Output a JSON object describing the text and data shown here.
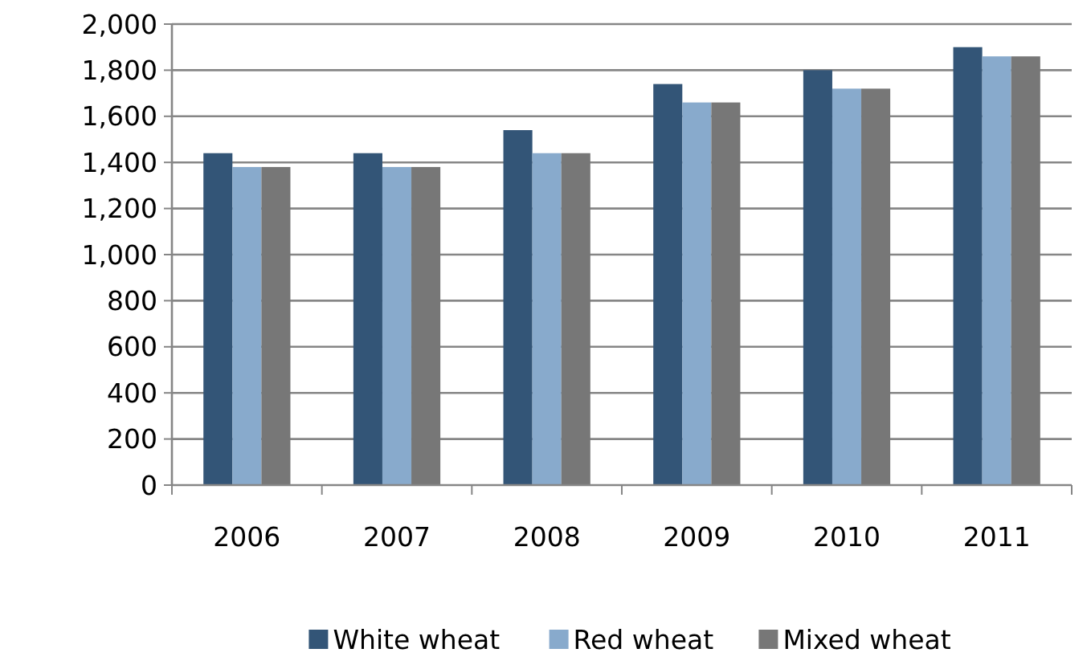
{
  "chart_data": {
    "type": "bar",
    "categories": [
      "2006",
      "2007",
      "2008",
      "2009",
      "2010",
      "2011"
    ],
    "series": [
      {
        "name": "White wheat",
        "color": "#335577",
        "values": [
          1440,
          1440,
          1540,
          1740,
          1800,
          1900
        ]
      },
      {
        "name": "Red wheat",
        "color": "#88aacc",
        "values": [
          1380,
          1380,
          1440,
          1660,
          1720,
          1860
        ]
      },
      {
        "name": "Mixed wheat",
        "color": "#777777",
        "values": [
          1380,
          1380,
          1440,
          1660,
          1720,
          1860
        ]
      }
    ],
    "ylim": [
      0,
      2000
    ],
    "yticks": [
      0,
      {
        "value": 200,
        "label": "200"
      },
      {
        "value": 400,
        "label": "400"
      },
      {
        "value": 600,
        "label": "600"
      },
      {
        "value": 800,
        "label": "800"
      },
      {
        "value": 1000,
        "label": "1,000"
      },
      {
        "value": 1200,
        "label": "1,200"
      },
      {
        "value": 1400,
        "label": "1,400"
      },
      {
        "value": 1600,
        "label": "1,600"
      },
      {
        "value": 1800,
        "label": "1,800"
      },
      {
        "value": 2000,
        "label": "2,000"
      }
    ],
    "grid": "y",
    "legend": "bottom"
  }
}
